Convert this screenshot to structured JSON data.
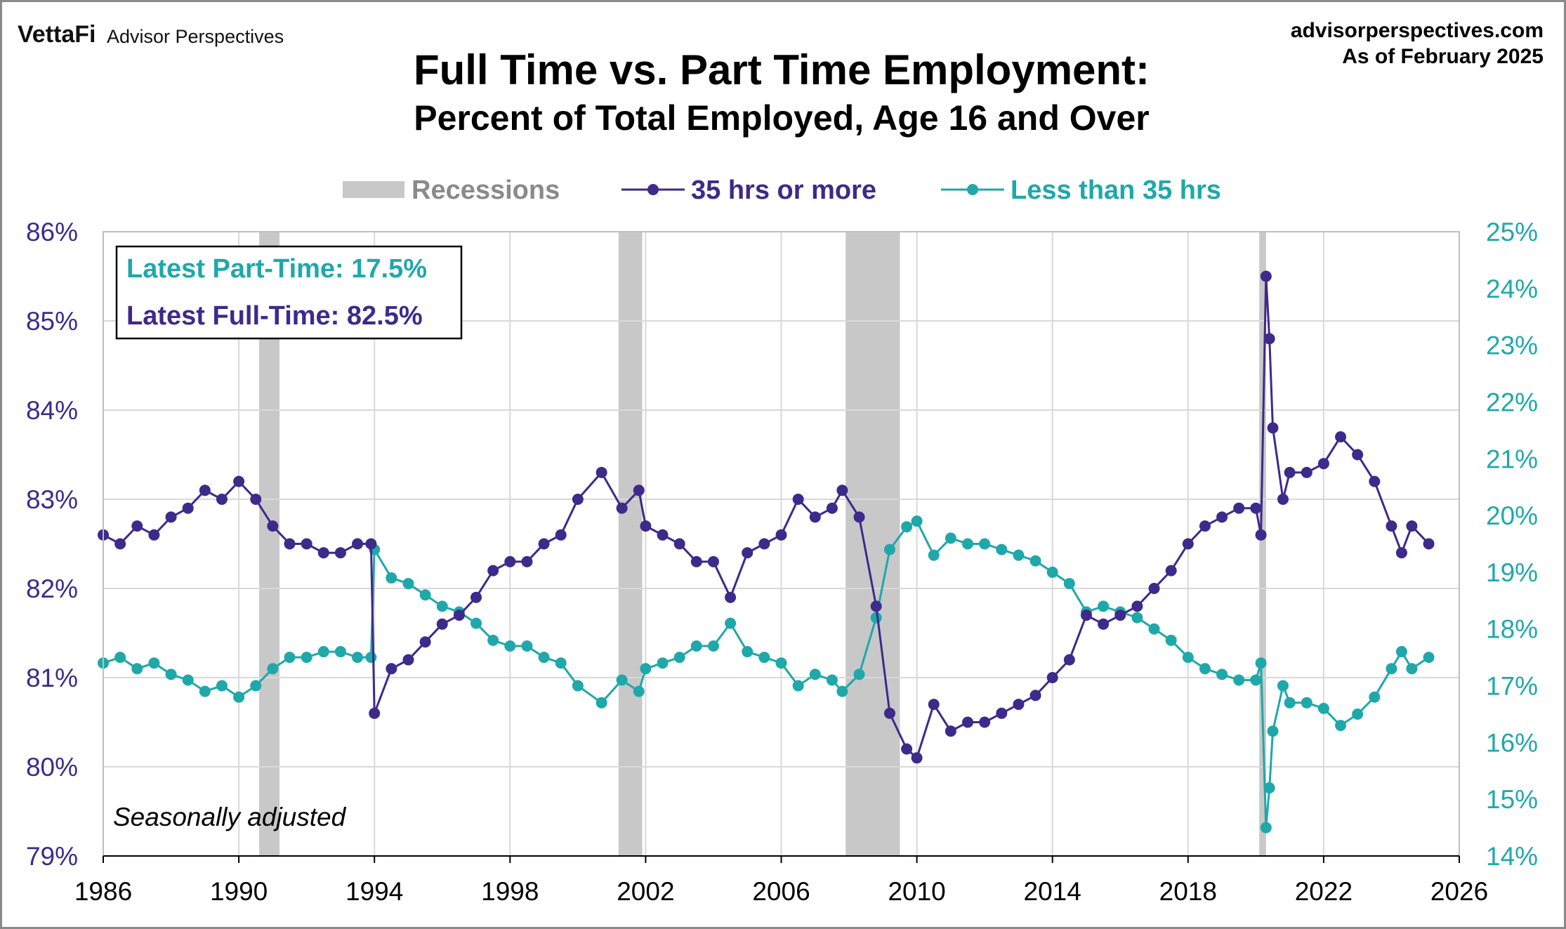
{
  "header": {
    "logo_brand": "VettaFi",
    "logo_sub": "Advisor Perspectives",
    "site": "advisorperspectives.com",
    "as_of": "As of February 2025"
  },
  "colors": {
    "full_time": "#3d2a8a",
    "part_time": "#1fa8aa",
    "recession": "#c8c8c8",
    "grid": "#d9d9d9"
  },
  "chart_data": {
    "type": "line",
    "title": "Full Time vs. Part Time Employment:",
    "subtitle": "Percent of Total Employed, Age 16 and Over",
    "legend": [
      "Recessions",
      "35 hrs or more",
      "Less than 35 hrs"
    ],
    "legend_placement": "top",
    "grid": true,
    "x_ticks": [
      "1986",
      "1990",
      "1994",
      "1998",
      "2002",
      "2006",
      "2010",
      "2014",
      "2018",
      "2022",
      "2026"
    ],
    "xlim": [
      1986,
      2026
    ],
    "y_left": {
      "lim": [
        79,
        86
      ],
      "ticks": [
        "79%",
        "80%",
        "81%",
        "82%",
        "83%",
        "84%",
        "85%",
        "86%"
      ]
    },
    "y_right": {
      "lim": [
        14,
        25
      ],
      "ticks": [
        "14%",
        "15%",
        "16%",
        "17%",
        "18%",
        "19%",
        "20%",
        "21%",
        "22%",
        "23%",
        "24%",
        "25%"
      ]
    },
    "recessions": [
      [
        1990.6,
        1991.2
      ],
      [
        2001.2,
        2001.9
      ],
      [
        2007.9,
        2009.5
      ],
      [
        2020.1,
        2020.3
      ]
    ],
    "annotations": {
      "latest_part_time": "Latest Part-Time: 17.5%",
      "latest_full_time": "Latest Full-Time: 82.5%",
      "note": "Seasonally adjusted"
    },
    "series": [
      {
        "name": "35 hrs or more",
        "axis": "left",
        "x": [
          1986,
          1986.5,
          1987,
          1987.5,
          1988,
          1988.5,
          1989,
          1989.5,
          1990,
          1990.5,
          1991,
          1991.5,
          1992,
          1992.5,
          1993,
          1993.5,
          1993.9,
          1994.0,
          1994.5,
          1995,
          1995.5,
          1996,
          1996.5,
          1997,
          1997.5,
          1998,
          1998.5,
          1999,
          1999.5,
          2000,
          2000.7,
          2001.3,
          2001.8,
          2002,
          2002.5,
          2003,
          2003.5,
          2004,
          2004.5,
          2005,
          2005.5,
          2006,
          2006.5,
          2007,
          2007.5,
          2007.8,
          2008.3,
          2008.8,
          2009.2,
          2009.7,
          2010,
          2010.5,
          2011,
          2011.5,
          2012,
          2012.5,
          2013,
          2013.5,
          2014,
          2014.5,
          2015,
          2015.5,
          2016,
          2016.5,
          2017,
          2017.5,
          2018,
          2018.5,
          2019,
          2019.5,
          2020,
          2020.15,
          2020.3,
          2020.4,
          2020.5,
          2020.8,
          2021,
          2021.5,
          2022,
          2022.5,
          2023,
          2023.5,
          2024,
          2024.3,
          2024.6,
          2025.1
        ],
        "values": [
          82.6,
          82.5,
          82.7,
          82.6,
          82.8,
          82.9,
          83.1,
          83.0,
          83.2,
          83.0,
          82.7,
          82.5,
          82.5,
          82.4,
          82.4,
          82.5,
          82.5,
          80.6,
          81.1,
          81.2,
          81.4,
          81.6,
          81.7,
          81.9,
          82.2,
          82.3,
          82.3,
          82.5,
          82.6,
          83.0,
          83.3,
          82.9,
          83.1,
          82.7,
          82.6,
          82.5,
          82.3,
          82.3,
          81.9,
          82.4,
          82.5,
          82.6,
          83.0,
          82.8,
          82.9,
          83.1,
          82.8,
          81.8,
          80.6,
          80.2,
          80.1,
          80.7,
          80.4,
          80.5,
          80.5,
          80.6,
          80.7,
          80.8,
          81.0,
          81.2,
          81.7,
          81.6,
          81.7,
          81.8,
          82.0,
          82.2,
          82.5,
          82.7,
          82.8,
          82.9,
          82.9,
          82.6,
          85.5,
          84.8,
          83.8,
          83.0,
          83.3,
          83.3,
          83.4,
          83.7,
          83.5,
          83.2,
          82.7,
          82.4,
          82.7,
          82.5
        ]
      },
      {
        "name": "Less than 35 hrs",
        "axis": "right",
        "x": [
          1986,
          1986.5,
          1987,
          1987.5,
          1988,
          1988.5,
          1989,
          1989.5,
          1990,
          1990.5,
          1991,
          1991.5,
          1992,
          1992.5,
          1993,
          1993.5,
          1993.9,
          1994.0,
          1994.5,
          1995,
          1995.5,
          1996,
          1996.5,
          1997,
          1997.5,
          1998,
          1998.5,
          1999,
          1999.5,
          2000,
          2000.7,
          2001.3,
          2001.8,
          2002,
          2002.5,
          2003,
          2003.5,
          2004,
          2004.5,
          2005,
          2005.5,
          2006,
          2006.5,
          2007,
          2007.5,
          2007.8,
          2008.3,
          2008.8,
          2009.2,
          2009.7,
          2010,
          2010.5,
          2011,
          2011.5,
          2012,
          2012.5,
          2013,
          2013.5,
          2014,
          2014.5,
          2015,
          2015.5,
          2016,
          2016.5,
          2017,
          2017.5,
          2018,
          2018.5,
          2019,
          2019.5,
          2020,
          2020.15,
          2020.3,
          2020.4,
          2020.5,
          2020.8,
          2021,
          2021.5,
          2022,
          2022.5,
          2023,
          2023.5,
          2024,
          2024.3,
          2024.6,
          2025.1
        ],
        "values": [
          17.4,
          17.5,
          17.3,
          17.4,
          17.2,
          17.1,
          16.9,
          17.0,
          16.8,
          17.0,
          17.3,
          17.5,
          17.5,
          17.6,
          17.6,
          17.5,
          17.5,
          19.4,
          18.9,
          18.8,
          18.6,
          18.4,
          18.3,
          18.1,
          17.8,
          17.7,
          17.7,
          17.5,
          17.4,
          17.0,
          16.7,
          17.1,
          16.9,
          17.3,
          17.4,
          17.5,
          17.7,
          17.7,
          18.1,
          17.6,
          17.5,
          17.4,
          17.0,
          17.2,
          17.1,
          16.9,
          17.2,
          18.2,
          19.4,
          19.8,
          19.9,
          19.3,
          19.6,
          19.5,
          19.5,
          19.4,
          19.3,
          19.2,
          19.0,
          18.8,
          18.3,
          18.4,
          18.3,
          18.2,
          18.0,
          17.8,
          17.5,
          17.3,
          17.2,
          17.1,
          17.1,
          17.4,
          14.5,
          15.2,
          16.2,
          17.0,
          16.7,
          16.7,
          16.6,
          16.3,
          16.5,
          16.8,
          17.3,
          17.6,
          17.3,
          17.5
        ]
      }
    ]
  }
}
